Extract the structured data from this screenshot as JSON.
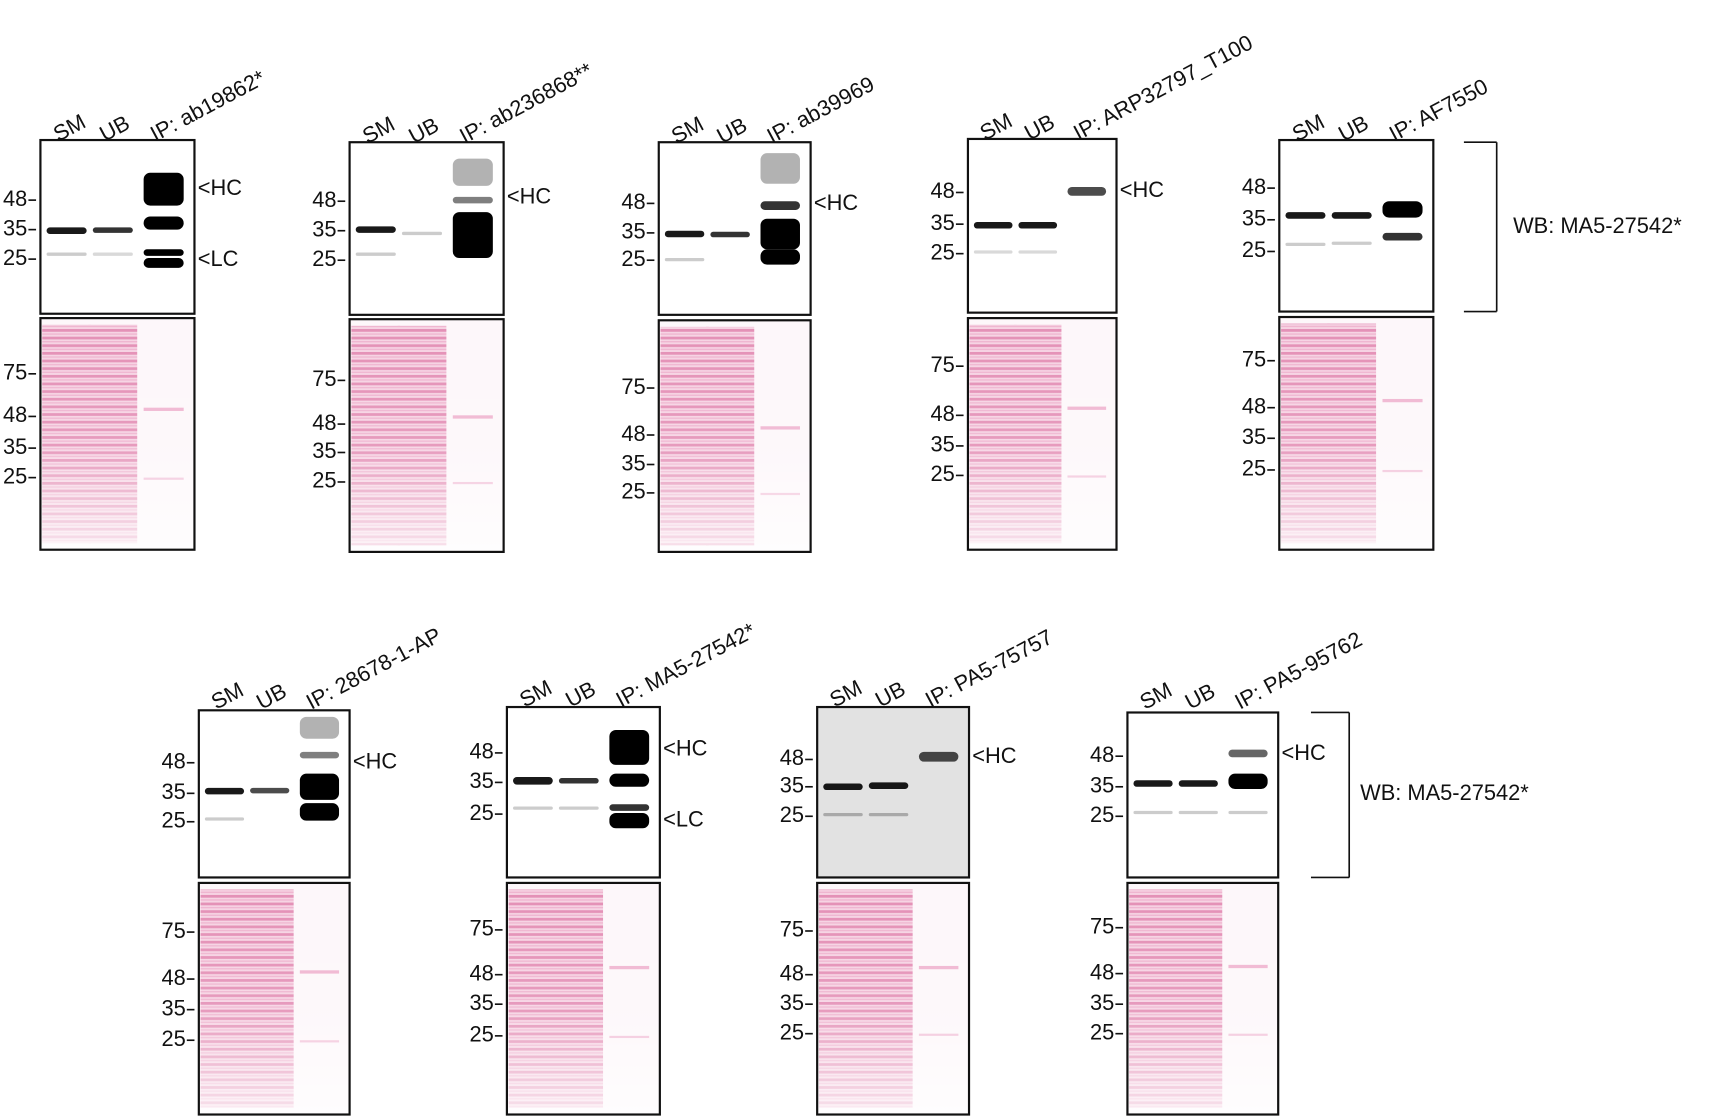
{
  "panels": [
    {
      "lanes": [
        "SM",
        "UB",
        "IP: ab19862*"
      ],
      "wb_markers": [
        "48",
        "35",
        "25"
      ],
      "ponceau_markers": [
        "75",
        "48",
        "35",
        "25"
      ],
      "annotations": [
        "<HC",
        "<LC"
      ]
    },
    {
      "lanes": [
        "SM",
        "UB",
        "IP: ab236868**"
      ],
      "wb_markers": [
        "48",
        "35",
        "25"
      ],
      "ponceau_markers": [
        "75",
        "48",
        "35",
        "25"
      ],
      "annotations": [
        "<HC"
      ]
    },
    {
      "lanes": [
        "SM",
        "UB",
        "IP: ab39969"
      ],
      "wb_markers": [
        "48",
        "35",
        "25"
      ],
      "ponceau_markers": [
        "75",
        "48",
        "35",
        "25"
      ],
      "annotations": [
        "<HC"
      ]
    },
    {
      "lanes": [
        "SM",
        "UB",
        "IP: ARP32797_T100"
      ],
      "wb_markers": [
        "48",
        "35",
        "25"
      ],
      "ponceau_markers": [
        "75",
        "48",
        "35",
        "25"
      ],
      "annotations": [
        "<HC"
      ]
    },
    {
      "lanes": [
        "SM",
        "UB",
        "IP: AF7550"
      ],
      "wb_markers": [
        "48",
        "35",
        "25"
      ],
      "ponceau_markers": [
        "75",
        "48",
        "35",
        "25"
      ],
      "annotations": []
    },
    {
      "lanes": [
        "SM",
        "UB",
        "IP: 28678-1-AP"
      ],
      "wb_markers": [
        "48",
        "35",
        "25"
      ],
      "ponceau_markers": [
        "75",
        "48",
        "35",
        "25"
      ],
      "annotations": [
        "<HC"
      ]
    },
    {
      "lanes": [
        "SM",
        "UB",
        "IP: MA5-27542*"
      ],
      "wb_markers": [
        "48",
        "35",
        "25"
      ],
      "ponceau_markers": [
        "75",
        "48",
        "35",
        "25"
      ],
      "annotations": [
        "<HC",
        "<LC"
      ]
    },
    {
      "lanes": [
        "SM",
        "UB",
        "IP: PA5-75757"
      ],
      "wb_markers": [
        "48",
        "35",
        "25"
      ],
      "ponceau_markers": [
        "75",
        "48",
        "35",
        "25"
      ],
      "annotations": [
        "<HC"
      ]
    },
    {
      "lanes": [
        "SM",
        "UB",
        "IP: PA5-95762"
      ],
      "wb_markers": [
        "48",
        "35",
        "25"
      ],
      "ponceau_markers": [
        "75",
        "48",
        "35",
        "25"
      ],
      "annotations": [
        "<HC"
      ]
    }
  ],
  "wb_labels": [
    "WB: MA5-27542*",
    "WB: MA5-27542*"
  ]
}
